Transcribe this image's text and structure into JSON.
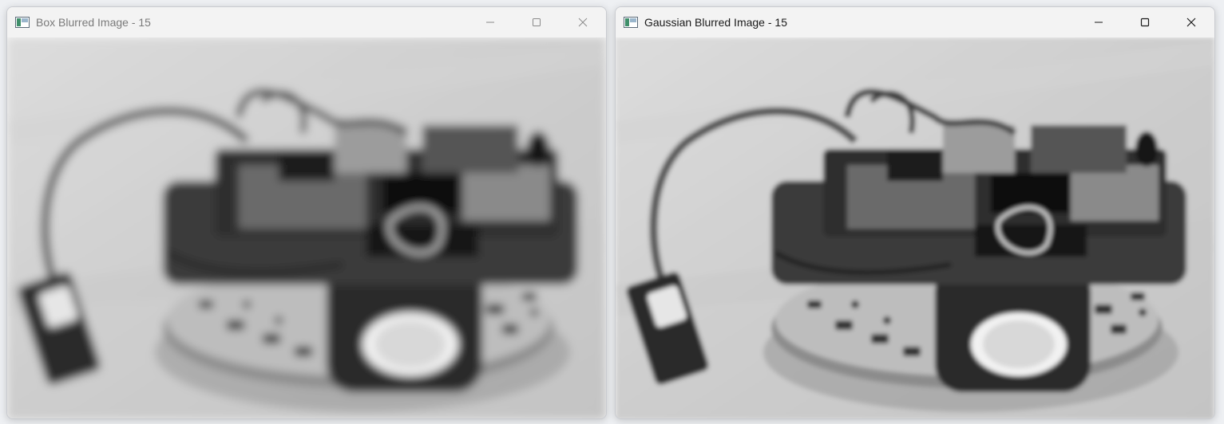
{
  "windows": [
    {
      "title": "Box Blurred Image - 15",
      "active": false,
      "blur": "box",
      "blur_radius": 15
    },
    {
      "title": "Gaussian Blurred Image - 15",
      "active": true,
      "blur": "gaussian",
      "blur_radius": 15
    }
  ],
  "controls": {
    "minimize": "minimize-icon",
    "maximize": "maximize-icon",
    "close": "close-icon"
  }
}
